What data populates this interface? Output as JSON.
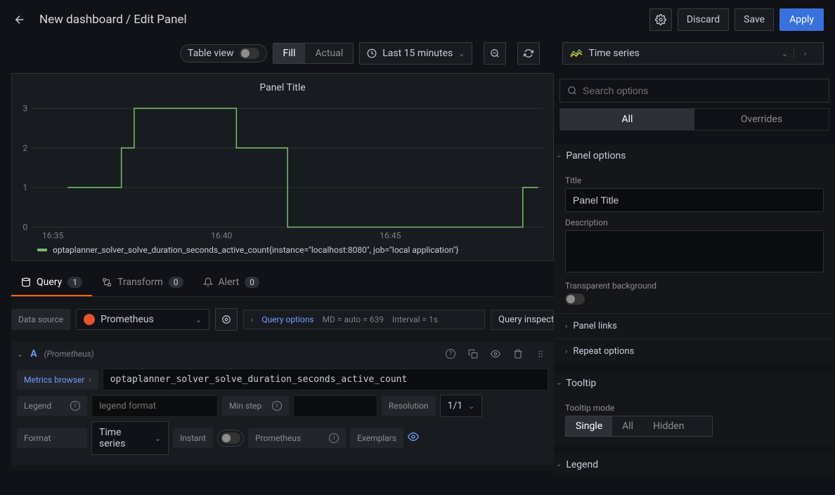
{
  "header": {
    "breadcrumb": "New dashboard / Edit Panel",
    "discard": "Discard",
    "save": "Save",
    "apply": "Apply",
    "apply_bg": "#3871dc"
  },
  "toolbar": {
    "table_view_label": "Table view",
    "fill": "Fill",
    "actual": "Actual",
    "time_range": "Last 15 minutes",
    "viz_type": "Time series"
  },
  "panel": {
    "title": "Panel Title",
    "chart": {
      "type": "line-step",
      "line_color": "#73bf69",
      "grid_color": "#2c3235",
      "background_color": "#181b1f",
      "ylim": [
        0,
        3
      ],
      "ytick_step": 1,
      "yticks": [
        "0",
        "1",
        "2",
        "3"
      ],
      "xticks": [
        "16:35",
        "16:40",
        "16:45"
      ],
      "xtick_positions": [
        0.02,
        0.35,
        0.68
      ],
      "points": [
        [
          0.07,
          1
        ],
        [
          0.175,
          1
        ],
        [
          0.175,
          2
        ],
        [
          0.2,
          2
        ],
        [
          0.2,
          3
        ],
        [
          0.4,
          3
        ],
        [
          0.4,
          2
        ],
        [
          0.5,
          2
        ],
        [
          0.5,
          0
        ],
        [
          0.96,
          0
        ],
        [
          0.96,
          1
        ],
        [
          0.99,
          1
        ]
      ]
    },
    "legend_text": "optaplanner_solver_solve_duration_seconds_active_count{instance=\"localhost:8080\", job=\"local application\"}"
  },
  "tabs": {
    "query": {
      "label": "Query",
      "count": "1"
    },
    "transform": {
      "label": "Transform",
      "count": "0"
    },
    "alert": {
      "label": "Alert",
      "count": "0"
    }
  },
  "datasource": {
    "label": "Data source",
    "selected": "Prometheus",
    "query_options_label": "Query options",
    "md_info": "MD = auto = 639",
    "interval_info": "Interval = 1s",
    "inspector": "Query inspector"
  },
  "queryA": {
    "letter": "A",
    "ds": "(Prometheus)",
    "metrics_browser": "Metrics browser",
    "expr": "optaplanner_solver_solve_duration_seconds_active_count",
    "legend_label": "Legend",
    "legend_placeholder": "legend format",
    "min_step_label": "Min step",
    "resolution_label": "Resolution",
    "resolution_value": "1/1",
    "format_label": "Format",
    "format_value": "Time series",
    "instant_label": "Instant",
    "prometheus_label": "Prometheus",
    "exemplars_label": "Exemplars"
  },
  "options_pane": {
    "search_placeholder": "Search options",
    "all": "All",
    "overrides": "Overrides",
    "panel_options": {
      "title": "Panel options",
      "title_label": "Title",
      "title_value": "Panel Title",
      "description_label": "Description",
      "transparent_label": "Transparent background",
      "panel_links": "Panel links",
      "repeat_options": "Repeat options"
    },
    "tooltip": {
      "title": "Tooltip",
      "mode_label": "Tooltip mode",
      "single": "Single",
      "all": "All",
      "hidden": "Hidden"
    },
    "legend_title": "Legend"
  }
}
